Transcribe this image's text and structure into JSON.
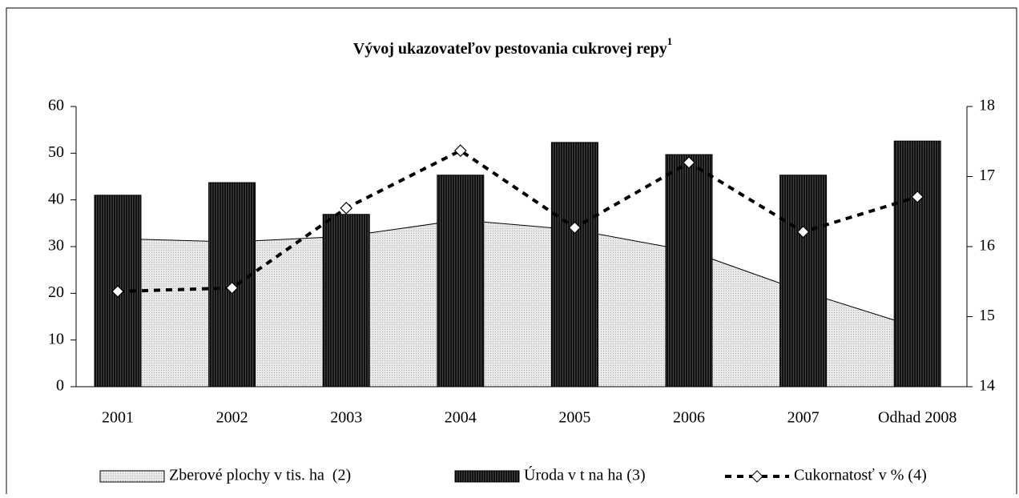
{
  "chart_data": {
    "type": "combo",
    "title": "Vývoj ukazovateľov pestovania cukrovej repy",
    "title_note": "1",
    "categories": [
      "2001",
      "2002",
      "2003",
      "2004",
      "2005",
      "2006",
      "2007",
      "Odhad 2008"
    ],
    "series": [
      {
        "name": "Zberové plochy v tis. ha  (2)",
        "type": "area",
        "color": "#e4e4e4",
        "values": [
          31.7,
          31.0,
          32.2,
          35.7,
          33.6,
          29.1,
          20.4,
          12.7
        ]
      },
      {
        "name": "Úroda v t na ha (3)",
        "type": "bar",
        "color": "#1a1a1a",
        "values": [
          41.0,
          43.7,
          36.9,
          45.3,
          52.3,
          49.7,
          45.3,
          52.6
        ]
      },
      {
        "name": "Cukornatosť v % (4)",
        "type": "line",
        "axis": "y2",
        "color": "#000000",
        "values": [
          15.36,
          15.41,
          16.55,
          17.37,
          16.27,
          17.2,
          16.21,
          16.71
        ]
      }
    ],
    "ylim": [
      0,
      60
    ],
    "yticks": [
      0,
      10,
      20,
      30,
      40,
      50,
      60
    ],
    "y2lim": [
      14,
      18
    ],
    "y2ticks": [
      14,
      15,
      16,
      17,
      18
    ],
    "legend": "bottom"
  }
}
